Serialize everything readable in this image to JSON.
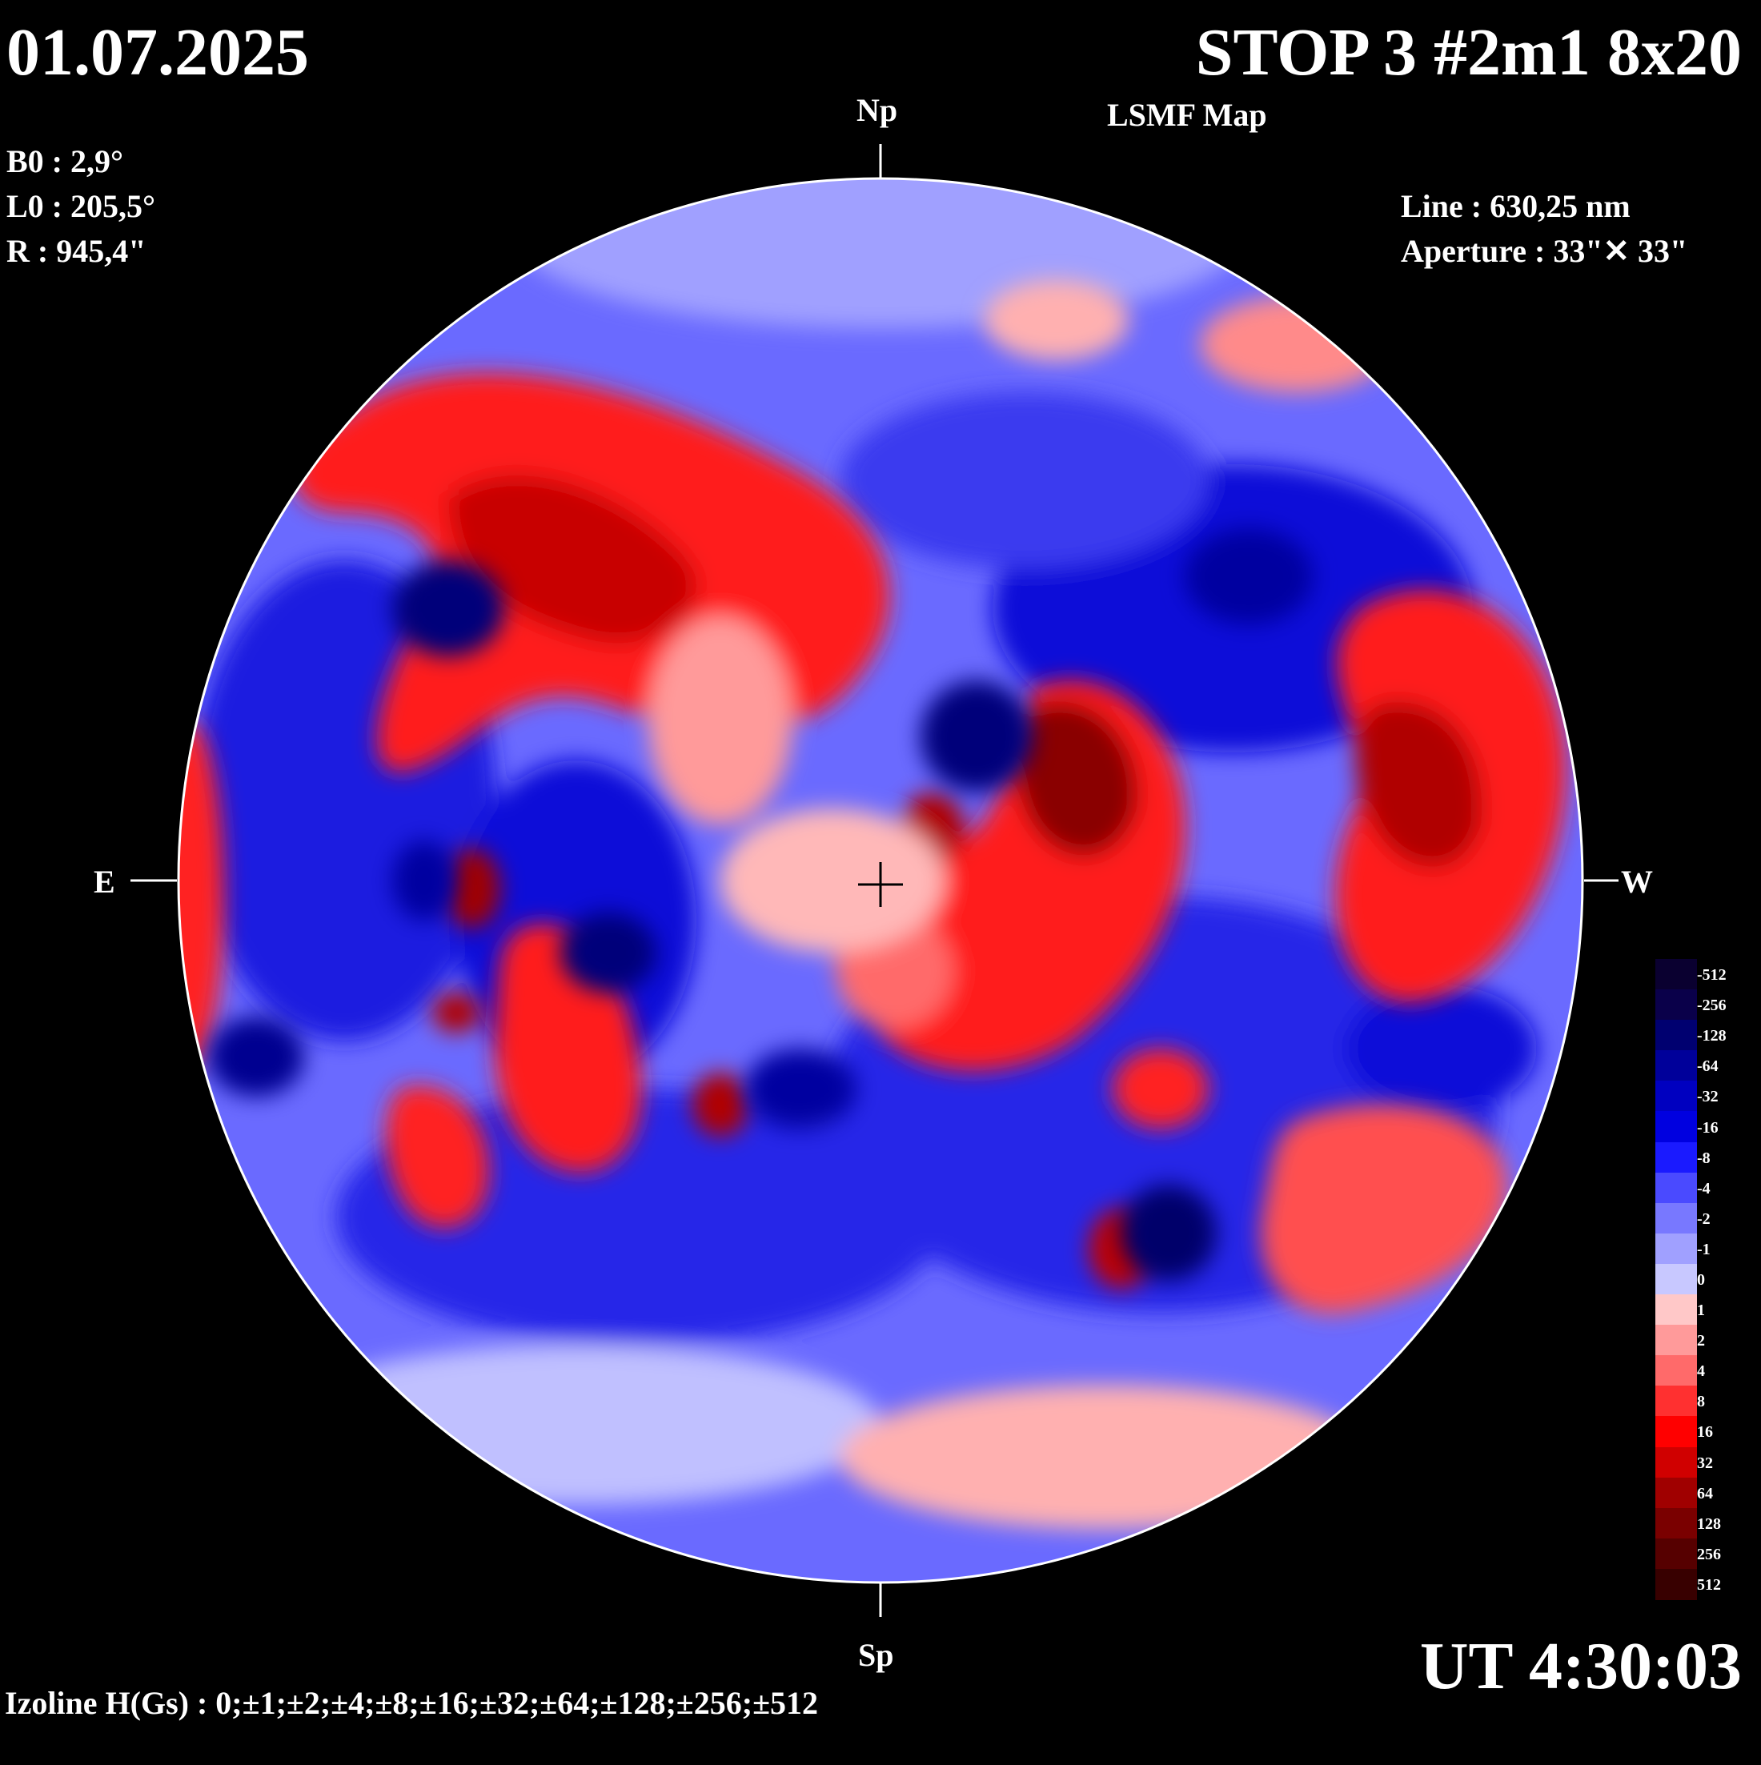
{
  "header": {
    "date": "01.07.2025",
    "title": "STOP 3 #2m1 8x20",
    "subtitle": "LSMF  Map"
  },
  "params": {
    "b0": "B0 : 2,9°",
    "l0": "L0 : 205,5°",
    "r": "R  : 945,4\""
  },
  "instrument": {
    "line": "Line :  630,25 nm",
    "aperture": "Aperture : 33\"✕ 33\""
  },
  "orientation": {
    "north": "Np",
    "south": "Sp",
    "east": "E",
    "west": "W"
  },
  "time": "UT 4:30:03",
  "footer": {
    "izoline": "Izoline H(Gs) : 0;±1;±2;±4;±8;±16;±32;±64;±128;±256;±512"
  },
  "colors": {
    "background": "#000000",
    "negative_strong": "#08003a",
    "negative_mid": "#0000dc",
    "negative_weak": "#c8c8f8",
    "zero": "#ffd0d0",
    "positive_weak": "#ff9898",
    "positive_mid": "#ff0000",
    "positive_strong": "#3a0000"
  },
  "colorbar": {
    "levels": [
      {
        "label": "-512",
        "color": "#0a0030"
      },
      {
        "label": "-256",
        "color": "#0a004a"
      },
      {
        "label": "-128",
        "color": "#000070"
      },
      {
        "label": "-64",
        "color": "#00009a"
      },
      {
        "label": "-32",
        "color": "#0000c0"
      },
      {
        "label": "-16",
        "color": "#0000e0"
      },
      {
        "label": "-8",
        "color": "#1a1aff"
      },
      {
        "label": "-4",
        "color": "#4a4aff"
      },
      {
        "label": "-2",
        "color": "#7878ff"
      },
      {
        "label": "-1",
        "color": "#a0a0ff"
      },
      {
        "label": "0",
        "color": "#c8c8ff"
      },
      {
        "label": "1",
        "color": "#ffc8c8"
      },
      {
        "label": "2",
        "color": "#ff9a9a"
      },
      {
        "label": "4",
        "color": "#ff6a6a"
      },
      {
        "label": "8",
        "color": "#ff3030"
      },
      {
        "label": "16",
        "color": "#ff0000"
      },
      {
        "label": "32",
        "color": "#d00000"
      },
      {
        "label": "64",
        "color": "#a00000"
      },
      {
        "label": "128",
        "color": "#7a0000"
      },
      {
        "label": "256",
        "color": "#560000"
      },
      {
        "label": "512",
        "color": "#380000"
      }
    ]
  }
}
